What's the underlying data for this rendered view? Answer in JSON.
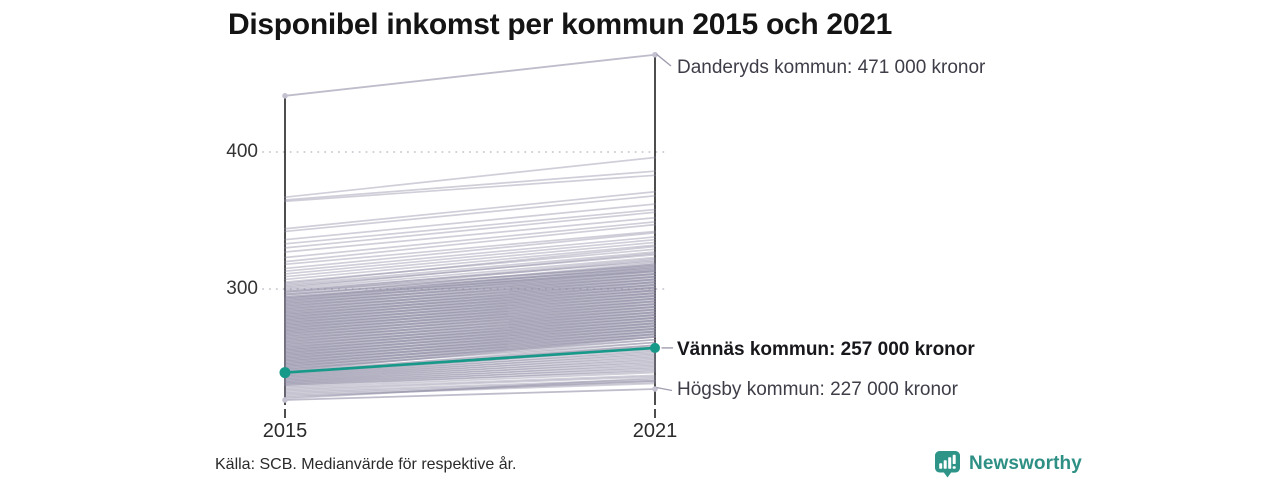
{
  "title": "Disponibel inkomst per kommun 2015 och 2021",
  "source": "Källa: SCB. Medianvärde för respektive år.",
  "brand": {
    "name": "Newsworthy",
    "color": "#2e8f85",
    "icon": "bar-chart-speech-bubble-icon"
  },
  "chart_data": {
    "type": "line",
    "variant": "slope-chart",
    "x": [
      2015,
      2021
    ],
    "x_labels": [
      "2015",
      "2021"
    ],
    "y_ticks": [
      400,
      300
    ],
    "y_tick_labels": [
      "400",
      "300"
    ],
    "y_unit": "tusen kronor (000 kronor)",
    "ylim": [
      215,
      480
    ],
    "grid": "dotted-horizontal",
    "legend": "none",
    "highlight_color": "#17998a",
    "background_line_color": "#c9c6d6",
    "annotated_series": [
      {
        "name": "Danderyds kommun",
        "values": [
          441,
          471
        ],
        "label": "Danderyds kommun: 471 000 kronor",
        "highlighted": false
      },
      {
        "name": "Vännäs kommun",
        "values": [
          239,
          257
        ],
        "label": "Vännäs kommun: 257 000 kronor",
        "highlighted": true
      },
      {
        "name": "Högsby kommun",
        "values": [
          219,
          227
        ],
        "label": "Högsby kommun: 227 000 kronor",
        "highlighted": false
      }
    ],
    "background_series_estimated": [
      [
        367,
        396
      ],
      [
        365,
        386
      ],
      [
        364,
        383
      ],
      [
        344,
        371
      ],
      [
        342,
        368
      ],
      [
        336,
        362
      ],
      [
        333,
        358
      ],
      [
        330,
        356
      ],
      [
        327,
        352
      ],
      [
        323,
        349
      ],
      [
        320,
        347
      ],
      [
        318,
        342
      ],
      [
        315,
        341
      ],
      [
        313,
        338
      ],
      [
        311,
        336
      ],
      [
        309,
        334
      ],
      [
        307,
        332
      ],
      [
        305,
        329
      ],
      [
        304,
        331
      ],
      [
        303,
        327
      ],
      [
        302,
        325
      ],
      [
        301,
        326
      ],
      [
        300,
        323
      ],
      [
        299,
        320
      ],
      [
        298,
        322
      ],
      [
        298,
        317
      ],
      [
        297,
        321
      ],
      [
        296,
        318
      ],
      [
        296,
        315
      ],
      [
        295,
        319
      ],
      [
        294,
        316
      ],
      [
        294,
        313
      ],
      [
        293,
        318
      ],
      [
        293,
        314
      ],
      [
        292,
        317
      ],
      [
        292,
        311
      ],
      [
        291,
        316
      ],
      [
        291,
        313
      ],
      [
        290,
        315
      ],
      [
        290,
        309
      ],
      [
        289,
        314
      ],
      [
        289,
        311
      ],
      [
        288,
        313
      ],
      [
        288,
        307
      ],
      [
        287,
        312
      ],
      [
        287,
        309
      ],
      [
        286,
        311
      ],
      [
        286,
        305
      ],
      [
        285,
        310
      ],
      [
        285,
        307
      ],
      [
        284,
        309
      ],
      [
        284,
        303
      ],
      [
        283,
        308
      ],
      [
        283,
        305
      ],
      [
        282,
        307
      ],
      [
        282,
        301
      ],
      [
        281,
        306
      ],
      [
        281,
        303
      ],
      [
        280,
        305
      ],
      [
        280,
        299
      ],
      [
        279,
        304
      ],
      [
        279,
        301
      ],
      [
        278,
        303
      ],
      [
        278,
        297
      ],
      [
        277,
        302
      ],
      [
        277,
        299
      ],
      [
        276,
        301
      ],
      [
        276,
        295
      ],
      [
        275,
        300
      ],
      [
        275,
        297
      ],
      [
        274,
        299
      ],
      [
        274,
        293
      ],
      [
        273,
        298
      ],
      [
        273,
        295
      ],
      [
        272,
        297
      ],
      [
        272,
        291
      ],
      [
        271,
        296
      ],
      [
        271,
        293
      ],
      [
        270,
        295
      ],
      [
        270,
        289
      ],
      [
        269,
        294
      ],
      [
        269,
        291
      ],
      [
        268,
        293
      ],
      [
        268,
        287
      ],
      [
        267,
        292
      ],
      [
        267,
        289
      ],
      [
        266,
        291
      ],
      [
        266,
        285
      ],
      [
        265,
        290
      ],
      [
        265,
        287
      ],
      [
        264,
        289
      ],
      [
        264,
        283
      ],
      [
        263,
        288
      ],
      [
        263,
        285
      ],
      [
        262,
        287
      ],
      [
        262,
        281
      ],
      [
        261,
        286
      ],
      [
        261,
        283
      ],
      [
        260,
        285
      ],
      [
        260,
        279
      ],
      [
        259,
        284
      ],
      [
        259,
        281
      ],
      [
        258,
        283
      ],
      [
        258,
        277
      ],
      [
        257,
        282
      ],
      [
        257,
        279
      ],
      [
        256,
        281
      ],
      [
        256,
        275
      ],
      [
        255,
        280
      ],
      [
        255,
        277
      ],
      [
        254,
        279
      ],
      [
        254,
        273
      ],
      [
        253,
        278
      ],
      [
        253,
        275
      ],
      [
        252,
        277
      ],
      [
        252,
        271
      ],
      [
        251,
        276
      ],
      [
        251,
        273
      ],
      [
        250,
        275
      ],
      [
        250,
        269
      ],
      [
        249,
        274
      ],
      [
        249,
        271
      ],
      [
        248,
        273
      ],
      [
        248,
        267
      ],
      [
        247,
        272
      ],
      [
        247,
        269
      ],
      [
        246,
        271
      ],
      [
        246,
        265
      ],
      [
        245,
        270
      ],
      [
        245,
        267
      ],
      [
        244,
        269
      ],
      [
        244,
        263
      ],
      [
        243,
        268
      ],
      [
        243,
        265
      ],
      [
        242,
        267
      ],
      [
        242,
        261
      ],
      [
        241,
        266
      ],
      [
        241,
        263
      ],
      [
        240,
        265
      ],
      [
        240,
        259
      ],
      [
        239,
        261
      ],
      [
        239,
        258
      ],
      [
        238,
        259
      ],
      [
        238,
        256
      ],
      [
        237,
        257
      ],
      [
        237,
        254
      ],
      [
        236,
        255
      ],
      [
        236,
        252
      ],
      [
        235,
        253
      ],
      [
        235,
        250
      ],
      [
        234,
        251
      ],
      [
        234,
        248
      ],
      [
        233,
        249
      ],
      [
        233,
        246
      ],
      [
        232,
        247
      ],
      [
        232,
        244
      ],
      [
        231,
        245
      ],
      [
        231,
        242
      ],
      [
        230,
        243
      ],
      [
        230,
        240
      ],
      [
        229,
        241
      ],
      [
        228,
        239
      ],
      [
        227,
        237
      ],
      [
        226,
        236
      ],
      [
        225,
        234
      ],
      [
        224,
        233
      ],
      [
        223,
        232
      ],
      [
        222,
        231
      ],
      [
        221,
        233
      ],
      [
        220,
        235
      ]
    ]
  }
}
